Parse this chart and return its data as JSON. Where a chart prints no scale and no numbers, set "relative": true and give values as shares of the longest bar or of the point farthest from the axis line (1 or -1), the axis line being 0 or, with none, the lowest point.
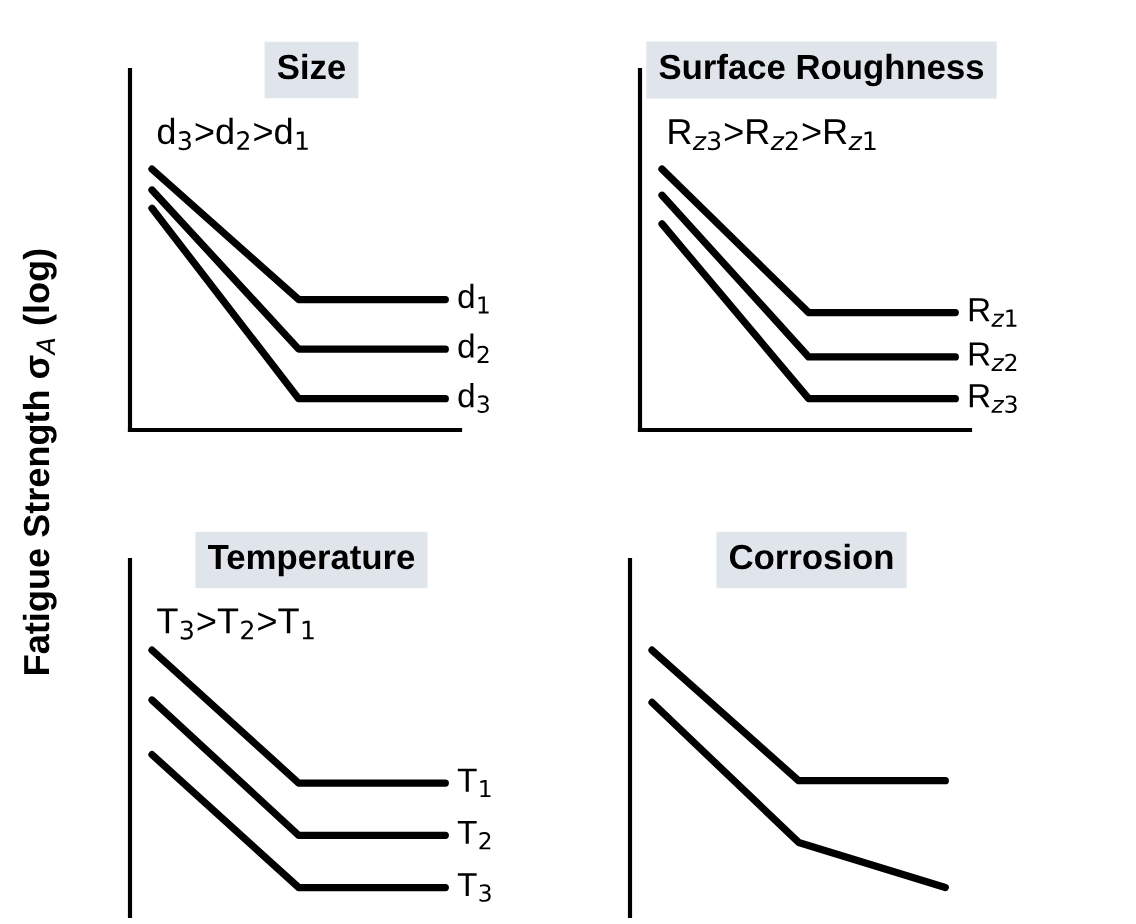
{
  "chart_data": [
    {
      "type": "line",
      "title": "Size",
      "ylabel": "Fatigue Strength σ$_{A}$ (log)",
      "relative": true,
      "categories": [
        null,
        null,
        null
      ],
      "annotations": [
        "d$_{3}$>d$_{2}$>d$_{1}$"
      ],
      "series": [
        {
          "name": "d$_{1}$",
          "color": "#000000",
          "values": [
            1,
            0.5,
            0.5
          ]
        },
        {
          "name": "d$_{2}$",
          "color": "#000000",
          "values": [
            0.92,
            0.31,
            0.31
          ]
        },
        {
          "name": "d$_{3}$",
          "color": "#000000",
          "values": [
            0.85,
            0.12,
            0.12
          ]
        }
      ]
    },
    {
      "type": "line",
      "title": "Surface Roughness",
      "relative": true,
      "categories": [
        null,
        null,
        null
      ],
      "annotations": [
        "R$_{z3}$>R$_{z2}$>R$_{z1}$"
      ],
      "series": [
        {
          "name": "R$_{z1}$",
          "color": "#000000",
          "values": [
            1,
            0.45,
            0.45
          ]
        },
        {
          "name": "R$_{z2}$",
          "color": "#000000",
          "values": [
            0.9,
            0.28,
            0.28
          ]
        },
        {
          "name": "R$_{z3}$",
          "color": "#000000",
          "values": [
            0.79,
            0.12,
            0.12
          ]
        }
      ]
    },
    {
      "type": "line",
      "title": "Temperature",
      "relative": true,
      "categories": [
        null,
        null,
        null
      ],
      "annotations": [
        "T$_{3}$>T$_{2}$>T$_{1}$"
      ],
      "series": [
        {
          "name": "T$_{1}$",
          "color": "#000000",
          "values": [
            1,
            0.44,
            0.44
          ]
        },
        {
          "name": "T$_{2}$",
          "color": "#000000",
          "values": [
            0.79,
            0.22,
            0.22
          ]
        },
        {
          "name": "T$_{3}$",
          "color": "#000000",
          "values": [
            0.56,
            0,
            0
          ]
        }
      ]
    },
    {
      "type": "line",
      "title": "Corrosion",
      "relative": true,
      "categories": [
        null,
        null,
        null
      ],
      "series": [
        {
          "color": "#000000",
          "values": [
            1,
            0.45,
            0.45
          ]
        },
        {
          "color": "#000000",
          "values": [
            0.78,
            0.19,
            0
          ]
        }
      ]
    }
  ]
}
